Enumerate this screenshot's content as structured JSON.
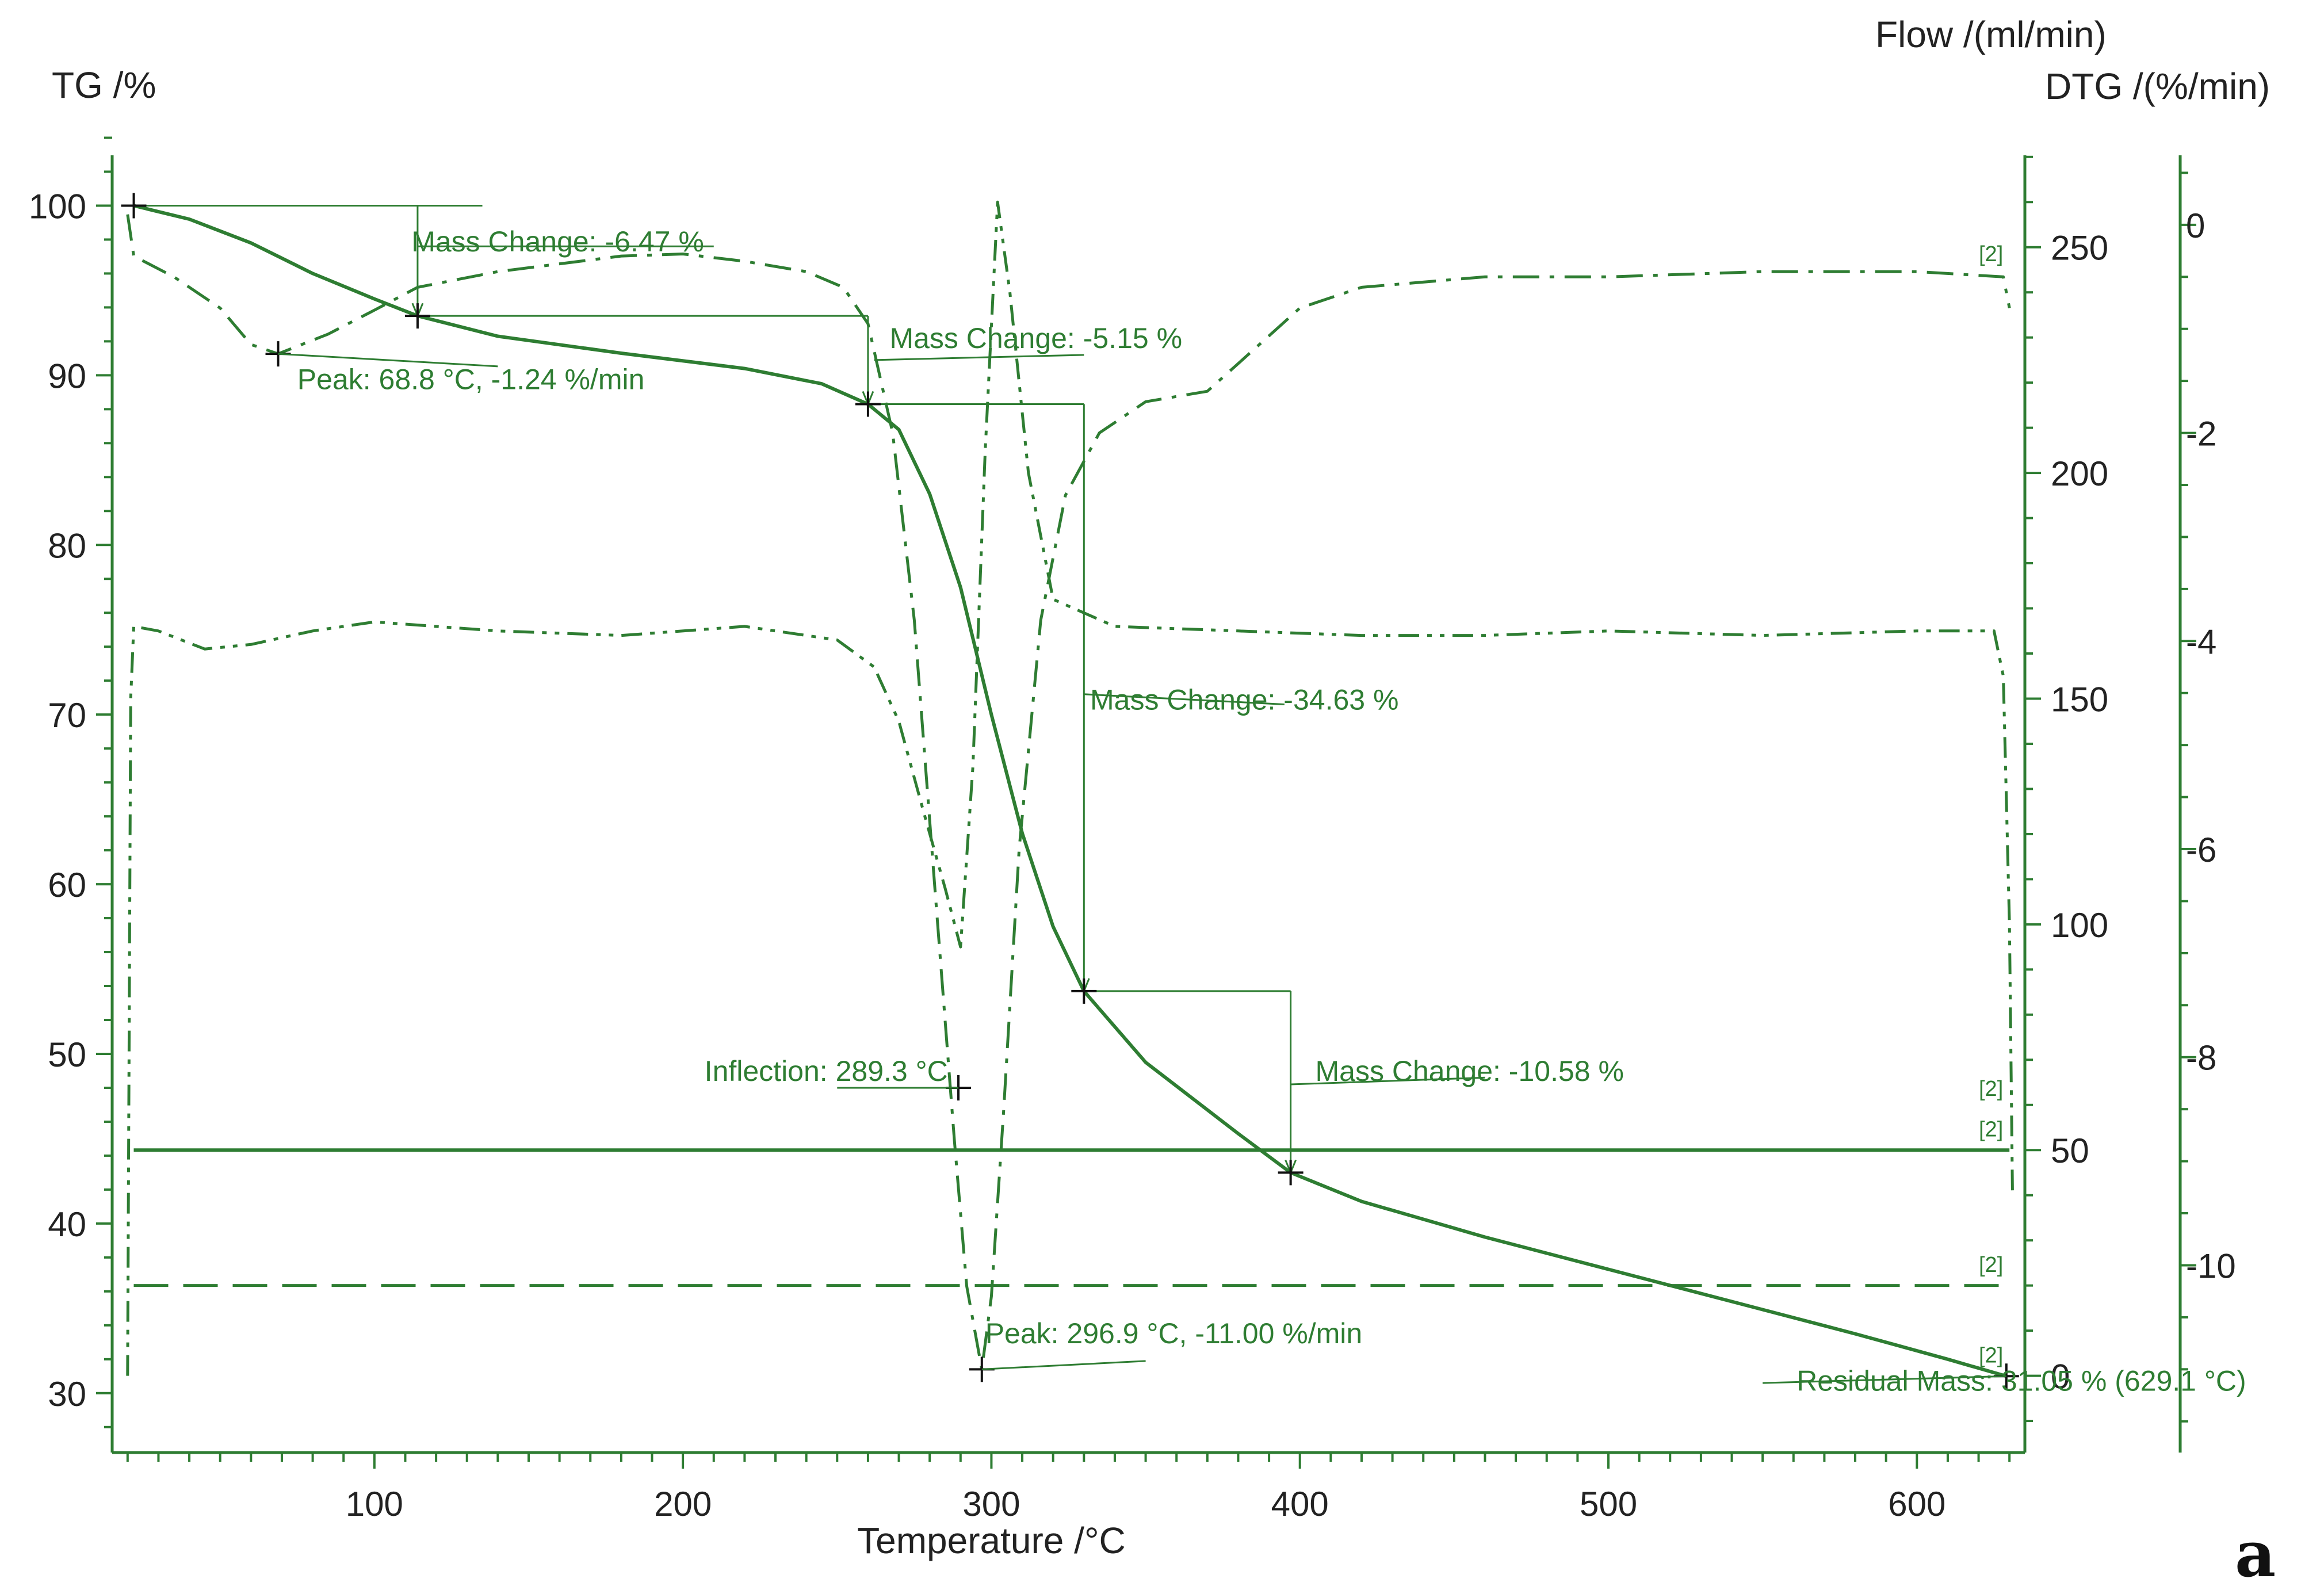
{
  "chart_data": {
    "type": "line",
    "panel_label": "a",
    "xlabel": "Temperature /°C",
    "xlim": [
      15,
      635
    ],
    "xticks": [
      100,
      200,
      300,
      400,
      500,
      600
    ],
    "axes": {
      "tg": {
        "label": "TG /%",
        "range": [
          26.5,
          105
        ],
        "ticks": [
          30,
          40,
          50,
          60,
          70,
          80,
          90,
          100
        ]
      },
      "flow": {
        "label": "Flow /(ml/min)",
        "range": [
          -17,
          278
        ],
        "ticks": [
          0,
          50,
          100,
          150,
          200,
          250
        ]
      },
      "dtg": {
        "label": "DTG /(%/min)",
        "range": [
          -11.8,
          1.0
        ],
        "ticks": [
          0,
          -2,
          -4,
          -6,
          -8,
          -10
        ]
      }
    },
    "colors": {
      "series": "#2e7d32",
      "text": "#222222"
    },
    "series": [
      {
        "axis": "tg",
        "style": "solid",
        "points": [
          [
            22,
            100
          ],
          [
            40,
            99.2
          ],
          [
            60,
            97.8
          ],
          [
            80,
            96
          ],
          [
            100,
            94.5
          ],
          [
            114,
            93.5
          ],
          [
            140,
            92.3
          ],
          [
            180,
            91.3
          ],
          [
            220,
            90.4
          ],
          [
            245,
            89.5
          ],
          [
            260,
            88.3
          ],
          [
            270,
            86.8
          ],
          [
            280,
            83
          ],
          [
            290,
            77.5
          ],
          [
            300,
            70
          ],
          [
            310,
            63
          ],
          [
            320,
            57.5
          ],
          [
            330,
            53.7
          ],
          [
            350,
            49.5
          ],
          [
            380,
            45.3
          ],
          [
            397,
            43
          ],
          [
            420,
            41.3
          ],
          [
            460,
            39.2
          ],
          [
            500,
            37.3
          ],
          [
            540,
            35.4
          ],
          [
            580,
            33.5
          ],
          [
            610,
            32
          ],
          [
            629,
            31
          ]
        ]
      },
      {
        "axis": "dtg",
        "style": "dashdot",
        "points": [
          [
            20,
            0.1
          ],
          [
            22,
            -0.3
          ],
          [
            35,
            -0.5
          ],
          [
            50,
            -0.8
          ],
          [
            60,
            -1.15
          ],
          [
            68.8,
            -1.24
          ],
          [
            85,
            -1.05
          ],
          [
            100,
            -0.82
          ],
          [
            114,
            -0.6
          ],
          [
            140,
            -0.45
          ],
          [
            180,
            -0.3
          ],
          [
            200,
            -0.28
          ],
          [
            220,
            -0.35
          ],
          [
            240,
            -0.45
          ],
          [
            252,
            -0.6
          ],
          [
            260,
            -0.95
          ],
          [
            268,
            -2.0
          ],
          [
            275,
            -3.8
          ],
          [
            282,
            -6.5
          ],
          [
            288,
            -8.8
          ],
          [
            292,
            -10.2
          ],
          [
            296.9,
            -11.0
          ],
          [
            300,
            -10.3
          ],
          [
            304,
            -8.5
          ],
          [
            309,
            -6.0
          ],
          [
            316,
            -3.8
          ],
          [
            324,
            -2.6
          ],
          [
            335,
            -2.0
          ],
          [
            350,
            -1.7
          ],
          [
            370,
            -1.6
          ],
          [
            385,
            -1.2
          ],
          [
            400,
            -0.8
          ],
          [
            420,
            -0.6
          ],
          [
            460,
            -0.5
          ],
          [
            500,
            -0.5
          ],
          [
            550,
            -0.45
          ],
          [
            600,
            -0.45
          ],
          [
            628,
            -0.5
          ],
          [
            630,
            -0.8
          ]
        ]
      },
      {
        "axis": "flow",
        "style": "dashdotdot",
        "points": [
          [
            20,
            0
          ],
          [
            21,
            150
          ],
          [
            22,
            166
          ],
          [
            30,
            165
          ],
          [
            45,
            161
          ],
          [
            60,
            162
          ],
          [
            80,
            165
          ],
          [
            100,
            167
          ],
          [
            140,
            165
          ],
          [
            180,
            164
          ],
          [
            220,
            166
          ],
          [
            250,
            163
          ],
          [
            262,
            157
          ],
          [
            270,
            145
          ],
          [
            278,
            125
          ],
          [
            285,
            108
          ],
          [
            290,
            95
          ],
          [
            294,
            135
          ],
          [
            298,
            205
          ],
          [
            302,
            260
          ],
          [
            306,
            240
          ],
          [
            312,
            200
          ],
          [
            320,
            172
          ],
          [
            340,
            166
          ],
          [
            380,
            165
          ],
          [
            420,
            164
          ],
          [
            460,
            164
          ],
          [
            500,
            165
          ],
          [
            550,
            164
          ],
          [
            600,
            165
          ],
          [
            625,
            165
          ],
          [
            628,
            155
          ],
          [
            630,
            100
          ],
          [
            631,
            40
          ]
        ]
      },
      {
        "axis": "flow",
        "style": "solid",
        "points": [
          [
            22,
            50
          ],
          [
            630,
            50
          ]
        ]
      },
      {
        "axis": "flow",
        "style": "dashed",
        "points": [
          [
            22,
            20
          ],
          [
            630,
            20
          ]
        ]
      }
    ],
    "annotations": [
      {
        "text": "Mass Change: -6.47 %"
      },
      {
        "text": "Mass Change: -5.15 %"
      },
      {
        "text": "Mass Change: -34.63 %"
      },
      {
        "text": "Mass Change: -10.58 %"
      },
      {
        "text": "Peak: 68.8 °C, -1.24 %/min"
      },
      {
        "text": "Peak: 296.9 °C, -11.00 %/min"
      },
      {
        "text": "Inflection: 289.3 °C"
      },
      {
        "text": "Residual Mass: 31.05 % (629.1 °C)"
      }
    ],
    "series_markers": [
      "[2]",
      "[2]",
      "[2]",
      "[2]",
      "[2]"
    ]
  }
}
